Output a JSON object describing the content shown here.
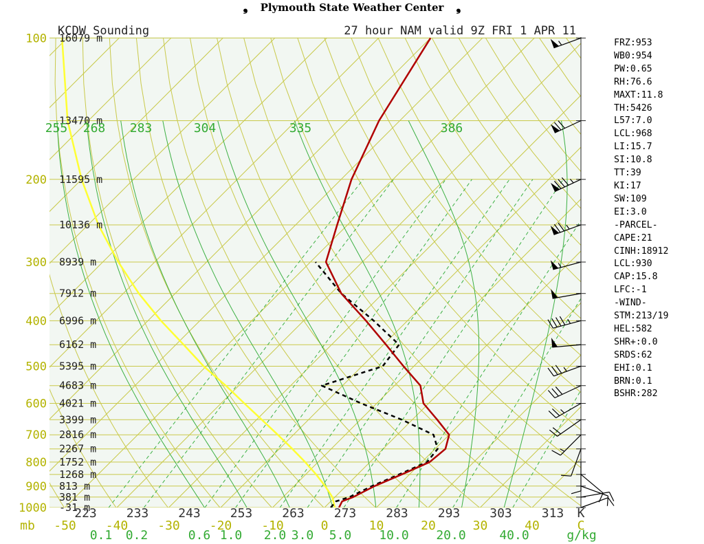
{
  "header": {
    "title": "Plymouth State Weather Center",
    "left_wing_icon": "swoosh-left",
    "right_wing_icon": "swoosh-right"
  },
  "colors": {
    "background": "#f2f7f2",
    "isobar": "#c9c94a",
    "isotherm": "#c9c94a",
    "dry_adiabat": "#c9c94a",
    "moist_adiabat": "#3cb043",
    "mixing_ratio": "#3cb043",
    "temperature": "#b00000",
    "dewpoint": "#000000",
    "parcel": "#ffff33",
    "label_yellow": "#b3b300",
    "label_green": "#33aa33"
  },
  "chart_data": {
    "type": "line",
    "title_left": "KCDW Sounding",
    "title_right": "27 hour NAM valid 9Z FRI 1 APR 11",
    "pressure_levels": [
      {
        "p": 100,
        "label": "100",
        "height": "16079 m"
      },
      {
        "p": 150,
        "label": "",
        "height": "13470 m"
      },
      {
        "p": 200,
        "label": "200",
        "height": "11595 m"
      },
      {
        "p": 250,
        "label": "",
        "height": "10136 m"
      },
      {
        "p": 300,
        "label": "300",
        "height": "8939 m"
      },
      {
        "p": 350,
        "label": "",
        "height": "7912 m"
      },
      {
        "p": 400,
        "label": "400",
        "height": "6996 m"
      },
      {
        "p": 450,
        "label": "",
        "height": "6162 m"
      },
      {
        "p": 500,
        "label": "500",
        "height": "5395 m"
      },
      {
        "p": 550,
        "label": "",
        "height": "4683 m"
      },
      {
        "p": 600,
        "label": "600",
        "height": "4021 m"
      },
      {
        "p": 650,
        "label": "",
        "height": "3399 m"
      },
      {
        "p": 700,
        "label": "700",
        "height": "2816 m"
      },
      {
        "p": 750,
        "label": "",
        "height": "2267 m"
      },
      {
        "p": 800,
        "label": "800",
        "height": "1752 m"
      },
      {
        "p": 850,
        "label": "",
        "height": "1268 m"
      },
      {
        "p": 900,
        "label": "900",
        "height": "813 m"
      },
      {
        "p": 950,
        "label": "",
        "height": "381 m"
      },
      {
        "p": 1000,
        "label": "1000",
        "height": "-31 m"
      }
    ],
    "pressure_unit": "mb",
    "temperature_ticks": [
      "-50",
      "-40",
      "-30",
      "-20",
      "-10",
      "0",
      "10",
      "20",
      "30",
      "40",
      "C"
    ],
    "kelvin_labels": [
      "223",
      "233",
      "243",
      "253",
      "263",
      "273",
      "283",
      "293",
      "303",
      "313",
      "K"
    ],
    "theta_e_labels": [
      "255",
      "268",
      "283",
      "304",
      "335",
      "386"
    ],
    "mixing_ratio_labels": [
      "0.1",
      "0.2",
      "0.6",
      "1.0",
      "2.0",
      "3.0",
      "5.0",
      "10.0",
      "20.0",
      "40.0"
    ],
    "mixing_ratio_unit": "g/kg",
    "series": [
      {
        "name": "temperature",
        "points": [
          {
            "p": 1000,
            "t": 2.8
          },
          {
            "p": 970,
            "t": 2.2
          },
          {
            "p": 950,
            "t": 3.5
          },
          {
            "p": 900,
            "t": 5.5
          },
          {
            "p": 850,
            "t": 8.5
          },
          {
            "p": 800,
            "t": 11.5
          },
          {
            "p": 750,
            "t": 12.0
          },
          {
            "p": 700,
            "t": 10.0
          },
          {
            "p": 650,
            "t": 4.8
          },
          {
            "p": 600,
            "t": -1.0
          },
          {
            "p": 550,
            "t": -5.0
          },
          {
            "p": 500,
            "t": -12.0
          },
          {
            "p": 450,
            "t": -19.5
          },
          {
            "p": 400,
            "t": -28.0
          },
          {
            "p": 350,
            "t": -38.0
          },
          {
            "p": 300,
            "t": -47.0
          },
          {
            "p": 250,
            "t": -52.0
          },
          {
            "p": 200,
            "t": -58.0
          },
          {
            "p": 150,
            "t": -64.0
          },
          {
            "p": 100,
            "t": -70.0
          }
        ]
      },
      {
        "name": "dewpoint",
        "points": [
          {
            "p": 1000,
            "t": 1.2
          },
          {
            "p": 970,
            "t": 1.0
          },
          {
            "p": 950,
            "t": 2.8
          },
          {
            "p": 900,
            "t": 5.0
          },
          {
            "p": 850,
            "t": 8.0
          },
          {
            "p": 800,
            "t": 11.0
          },
          {
            "p": 750,
            "t": 10.5
          },
          {
            "p": 700,
            "t": 7.0
          },
          {
            "p": 650,
            "t": -2.0
          },
          {
            "p": 600,
            "t": -13.0
          },
          {
            "p": 550,
            "t": -24.0
          },
          {
            "p": 500,
            "t": -16.0
          },
          {
            "p": 450,
            "t": -17.0
          },
          {
            "p": 400,
            "t": -26.5
          },
          {
            "p": 350,
            "t": -38.0
          },
          {
            "p": 300,
            "t": -49.0
          }
        ]
      },
      {
        "name": "parcel",
        "points": [
          {
            "p": 1000,
            "t": 2.0
          },
          {
            "p": 950,
            "t": -0.5
          },
          {
            "p": 900,
            "t": -4.0
          },
          {
            "p": 850,
            "t": -8.0
          },
          {
            "p": 800,
            "t": -12.5
          },
          {
            "p": 750,
            "t": -17.5
          },
          {
            "p": 700,
            "t": -23.0
          },
          {
            "p": 650,
            "t": -29.0
          },
          {
            "p": 600,
            "t": -35.5
          },
          {
            "p": 550,
            "t": -42.5
          },
          {
            "p": 500,
            "t": -50.5
          },
          {
            "p": 450,
            "t": -58.5
          },
          {
            "p": 400,
            "t": -67.5
          },
          {
            "p": 350,
            "t": -77.0
          },
          {
            "p": 300,
            "t": -87.0
          },
          {
            "p": 250,
            "t": -98.0
          },
          {
            "p": 200,
            "t": -110.0
          },
          {
            "p": 150,
            "t": -124.0
          },
          {
            "p": 100,
            "t": -141.0
          }
        ]
      }
    ],
    "winds": [
      {
        "p": 100,
        "dir": 250,
        "kt": 55
      },
      {
        "p": 150,
        "dir": 245,
        "kt": 70
      },
      {
        "p": 200,
        "dir": 245,
        "kt": 85
      },
      {
        "p": 250,
        "dir": 250,
        "kt": 75
      },
      {
        "p": 300,
        "dir": 255,
        "kt": 55
      },
      {
        "p": 350,
        "dir": 260,
        "kt": 50
      },
      {
        "p": 400,
        "dir": 255,
        "kt": 45
      },
      {
        "p": 450,
        "dir": 265,
        "kt": 50
      },
      {
        "p": 500,
        "dir": 250,
        "kt": 35
      },
      {
        "p": 550,
        "dir": 245,
        "kt": 30
      },
      {
        "p": 600,
        "dir": 240,
        "kt": 25
      },
      {
        "p": 650,
        "dir": 235,
        "kt": 20
      },
      {
        "p": 700,
        "dir": 225,
        "kt": 15
      },
      {
        "p": 750,
        "dir": 200,
        "kt": 10
      },
      {
        "p": 800,
        "dir": 180,
        "kt": 10
      },
      {
        "p": 850,
        "dir": 130,
        "kt": 10
      },
      {
        "p": 900,
        "dir": 110,
        "kt": 10
      },
      {
        "p": 950,
        "dir": 80,
        "kt": 10
      },
      {
        "p": 1000,
        "dir": 70,
        "kt": 10
      }
    ]
  },
  "indices": [
    "FRZ:953",
    "WB0:954",
    "PW:0.65",
    "RH:76.6",
    "MAXT:11.8",
    "TH:5426",
    "L57:7.0",
    "LCL:968",
    "LI:15.7",
    "SI:10.8",
    "TT:39",
    "KI:17",
    "SW:109",
    "EI:3.0",
    "-PARCEL-",
    "CAPE:21",
    "CINH:18912",
    "LCL:930",
    "CAP:15.8",
    "LFC:-1",
    "-WIND-",
    "STM:213/19",
    "HEL:582",
    "SHR+:0.0",
    "SRDS:62",
    "EHI:0.1",
    "BRN:0.1",
    "BSHR:282"
  ]
}
